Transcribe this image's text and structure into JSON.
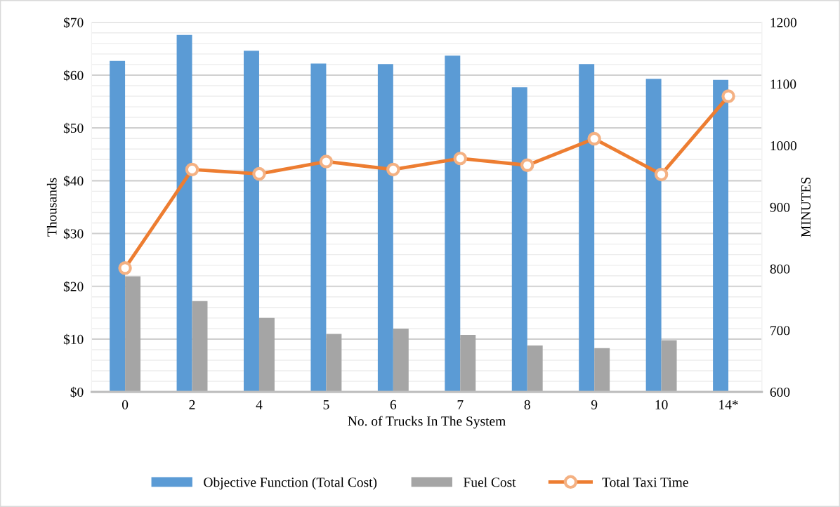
{
  "chart_data": {
    "type": "bar",
    "xlabel": "No. of Trucks In The System",
    "ylabel": "Thousands",
    "y2label": "MINUTES",
    "categories": [
      "0",
      "2",
      "4",
      "5",
      "6",
      "7",
      "8",
      "9",
      "10",
      "14*"
    ],
    "series": [
      {
        "name": "Objective Function (Total Cost)",
        "color": "#5b9bd5",
        "values": [
          62.7,
          67.6,
          64.6,
          62.2,
          62.1,
          63.7,
          57.7,
          62.1,
          59.3,
          59.1
        ]
      },
      {
        "name": "Fuel Cost",
        "color": "#a5a5a5",
        "values": [
          21.9,
          17.2,
          14.0,
          11.0,
          12.0,
          10.8,
          8.8,
          8.3,
          9.8,
          null
        ]
      },
      {
        "name": "Total Taxi Time",
        "type": "line",
        "axis": "y2",
        "color": "#ed7d31",
        "marker": "circle",
        "values": [
          801,
          961,
          954,
          974,
          961,
          979,
          968,
          1011,
          953,
          1080
        ]
      }
    ],
    "ylim": [
      0,
      70
    ],
    "yticks": [
      {
        "value": 0,
        "label": "$0"
      },
      {
        "value": 2,
        "label": null
      },
      {
        "value": 4,
        "label": null
      },
      {
        "value": 6,
        "label": null
      },
      {
        "value": 8,
        "label": null
      },
      {
        "value": 10,
        "label": "$10"
      },
      {
        "value": 12,
        "label": null
      },
      {
        "value": 14,
        "label": null
      },
      {
        "value": 16,
        "label": null
      },
      {
        "value": 18,
        "label": null
      },
      {
        "value": 20,
        "label": "$20"
      },
      {
        "value": 22,
        "label": null
      },
      {
        "value": 24,
        "label": null
      },
      {
        "value": 26,
        "label": null
      },
      {
        "value": 28,
        "label": null
      },
      {
        "value": 30,
        "label": "$30"
      },
      {
        "value": 32,
        "label": null
      },
      {
        "value": 34,
        "label": null
      },
      {
        "value": 36,
        "label": null
      },
      {
        "value": 38,
        "label": null
      },
      {
        "value": 40,
        "label": "$40"
      },
      {
        "value": 42,
        "label": null
      },
      {
        "value": 44,
        "label": null
      },
      {
        "value": 46,
        "label": null
      },
      {
        "value": 48,
        "label": null
      },
      {
        "value": 50,
        "label": "$50"
      },
      {
        "value": 52,
        "label": null
      },
      {
        "value": 54,
        "label": null
      },
      {
        "value": 56,
        "label": null
      },
      {
        "value": 58,
        "label": null
      },
      {
        "value": 60,
        "label": "$60"
      },
      {
        "value": 62,
        "label": null
      },
      {
        "value": 64,
        "label": null
      },
      {
        "value": 66,
        "label": null
      },
      {
        "value": 68,
        "label": null
      },
      {
        "value": 70,
        "label": "$70"
      }
    ],
    "y2lim": [
      600,
      1200
    ],
    "y2ticks": [
      600,
      700,
      800,
      900,
      1000,
      1100,
      1200
    ],
    "grid": "y",
    "legend": "bottom"
  }
}
